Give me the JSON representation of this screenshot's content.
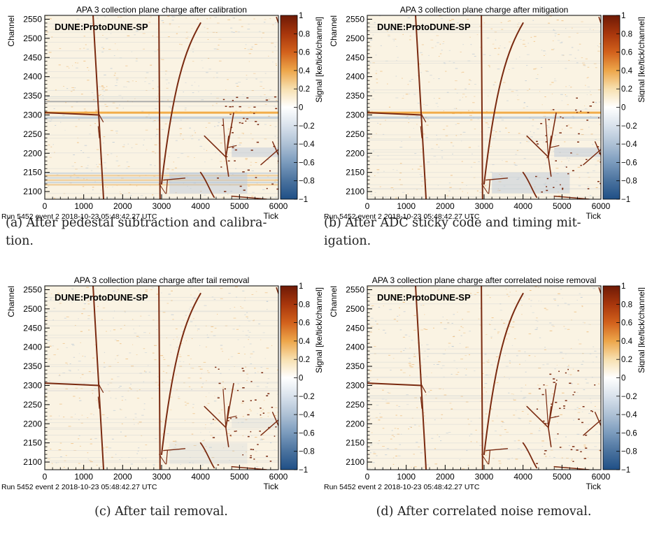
{
  "figure": {
    "panels": [
      {
        "title": "APA 3 collection plane charge after calibration",
        "caption": "(a) After pedestal subtraction and calibration.",
        "caption_lines": [
          "(a) After pedestal subtraction and calibra-",
          "tion."
        ],
        "stage": 1
      },
      {
        "title": "APA 3 collection plane charge after mitigation",
        "caption": "(b) After ADC sticky code and timing mitigation.",
        "caption_lines": [
          "(b) After ADC sticky code and timing mit-",
          "igation."
        ],
        "stage": 2
      },
      {
        "title": "APA 3 collection plane charge after tail removal",
        "caption": "(c) After tail removal.",
        "caption_lines": [
          "(c) After tail removal."
        ],
        "stage": 3
      },
      {
        "title": "APA 3 collection plane charge after correlated noise removal",
        "caption": "(d) After correlated noise removal.",
        "caption_lines": [
          "(d) After correlated noise removal."
        ],
        "stage": 4
      }
    ],
    "watermark": "DUNE:ProtoDUNE-SP",
    "run_info": "Run 5452 event 2 2018-10-23 05:48:42.27 UTC",
    "xlabel": "Tick",
    "ylabel": "Channel",
    "zlabel": "Signal [ke/tick/channel]",
    "x_ticks": [
      "0",
      "1000",
      "2000",
      "3000",
      "4000",
      "5000",
      "6000"
    ],
    "y_ticks": [
      "2100",
      "2150",
      "2200",
      "2250",
      "2300",
      "2350",
      "2400",
      "2450",
      "2500",
      "2550"
    ],
    "z_ticks": [
      "1",
      "0.8",
      "0.6",
      "0.4",
      "0.2",
      "0",
      "−0.2",
      "−0.4",
      "−0.6",
      "−0.8",
      "−1"
    ],
    "colors": {
      "background": "#faf3e3",
      "track": "#7a2a10",
      "positive_noise": "#e79a3c",
      "negative_noise": "#9fb6cf",
      "colorscale": [
        "#6e1a06",
        "#a8360c",
        "#d2611c",
        "#eda64a",
        "#f7e0b0",
        "#ffffff",
        "#d9e2ec",
        "#aec1d5",
        "#7b9bbd",
        "#4a729e",
        "#1f4f86"
      ]
    }
  },
  "chart_data": [
    {
      "type": "heatmap",
      "title": "APA 3 collection plane charge after calibration",
      "xlabel": "Tick",
      "ylabel": "Channel",
      "zlabel": "Signal [ke/tick/channel]",
      "xlim": [
        0,
        6000
      ],
      "ylim": [
        2080,
        2560
      ],
      "zlim": [
        -1,
        1
      ],
      "x_ticks": [
        0,
        1000,
        2000,
        3000,
        4000,
        5000,
        6000
      ],
      "y_ticks": [
        2100,
        2150,
        2200,
        2250,
        2300,
        2350,
        2400,
        2450,
        2500,
        2550
      ],
      "z_ticks": [
        1,
        0.8,
        0.6,
        0.4,
        0.2,
        0,
        -0.2,
        -0.4,
        -0.6,
        -0.8,
        -1
      ]
    },
    {
      "type": "heatmap",
      "title": "APA 3 collection plane charge after mitigation",
      "xlabel": "Tick",
      "ylabel": "Channel",
      "zlabel": "Signal [ke/tick/channel]",
      "xlim": [
        0,
        6000
      ],
      "ylim": [
        2080,
        2560
      ],
      "zlim": [
        -1,
        1
      ],
      "x_ticks": [
        0,
        1000,
        2000,
        3000,
        4000,
        5000,
        6000
      ],
      "y_ticks": [
        2100,
        2150,
        2200,
        2250,
        2300,
        2350,
        2400,
        2450,
        2500,
        2550
      ],
      "z_ticks": [
        1,
        0.8,
        0.6,
        0.4,
        0.2,
        0,
        -0.2,
        -0.4,
        -0.6,
        -0.8,
        -1
      ]
    },
    {
      "type": "heatmap",
      "title": "APA 3 collection plane charge after tail removal",
      "xlabel": "Tick",
      "ylabel": "Channel",
      "zlabel": "Signal [ke/tick/channel]",
      "xlim": [
        0,
        6000
      ],
      "ylim": [
        2080,
        2560
      ],
      "zlim": [
        -1,
        1
      ],
      "x_ticks": [
        0,
        1000,
        2000,
        3000,
        4000,
        5000,
        6000
      ],
      "y_ticks": [
        2100,
        2150,
        2200,
        2250,
        2300,
        2350,
        2400,
        2450,
        2500,
        2550
      ],
      "z_ticks": [
        1,
        0.8,
        0.6,
        0.4,
        0.2,
        0,
        -0.2,
        -0.4,
        -0.6,
        -0.8,
        -1
      ]
    },
    {
      "type": "heatmap",
      "title": "APA 3 collection plane charge after correlated noise removal",
      "xlabel": "Tick",
      "ylabel": "Channel",
      "zlabel": "Signal [ke/tick/channel]",
      "xlim": [
        0,
        6000
      ],
      "ylim": [
        2080,
        2560
      ],
      "zlim": [
        -1,
        1
      ],
      "x_ticks": [
        0,
        1000,
        2000,
        3000,
        4000,
        5000,
        6000
      ],
      "y_ticks": [
        2100,
        2150,
        2200,
        2250,
        2300,
        2350,
        2400,
        2450,
        2500,
        2550
      ],
      "z_ticks": [
        1,
        0.8,
        0.6,
        0.4,
        0.2,
        0,
        -0.2,
        -0.4,
        -0.6,
        -0.8,
        -1
      ]
    }
  ]
}
